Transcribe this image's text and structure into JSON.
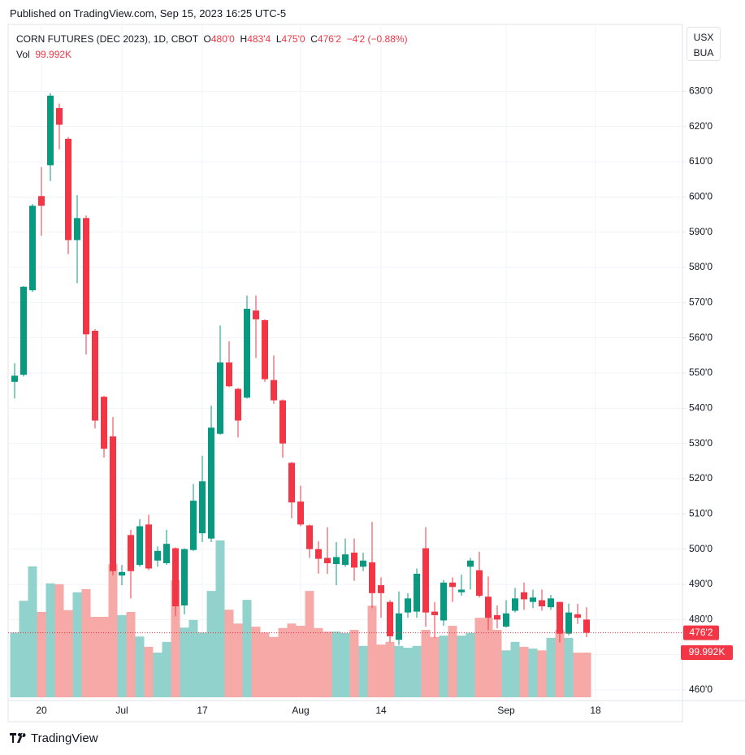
{
  "publisher": "Published on TradingView.com, Sep 15, 2023 16:25 UTC-5",
  "brand": "TradingView",
  "chart_data": {
    "type": "candlestick",
    "title": "CORN FUTURES (DEC 2023), 1D, CBOT",
    "header": {
      "ohlc": [
        {
          "key": "O",
          "text": "480'0"
        },
        {
          "key": "H",
          "text": "483'4"
        },
        {
          "key": "L",
          "text": "475'0"
        },
        {
          "key": "C",
          "text": "476'2"
        }
      ],
      "change": "−4'2 (−0.88%)",
      "volume_key": "Vol",
      "volume_text": "99.992K"
    },
    "currency": [
      "USX",
      "BUA"
    ],
    "categories": [
      null,
      null,
      null,
      "20",
      null,
      null,
      null,
      null,
      null,
      null,
      null,
      null,
      "Jul",
      null,
      null,
      null,
      null,
      null,
      null,
      null,
      null,
      "17",
      null,
      null,
      null,
      null,
      null,
      null,
      null,
      null,
      null,
      null,
      "Aug",
      null,
      null,
      null,
      null,
      null,
      null,
      null,
      null,
      "14",
      null,
      null,
      null,
      null,
      null,
      null,
      null,
      null,
      null,
      null,
      null,
      null,
      null,
      "Sep",
      null,
      null,
      null,
      null,
      null,
      null,
      null,
      null,
      null,
      "18"
    ],
    "open": [
      547.5,
      549.5,
      573.5,
      600.25,
      609,
      625.25,
      616.5,
      587.75,
      594,
      562,
      543.25,
      532,
      492.5,
      504,
      495.5,
      507,
      496.75,
      496,
      500.25,
      484,
      499.75,
      504.5,
      503,
      532.75,
      553,
      545.5,
      543,
      567.75,
      565,
      548,
      542.25,
      524.5,
      513.5,
      506.75,
      500,
      497.5,
      495.75,
      495.5,
      499,
      495,
      496.25,
      489.75,
      485,
      474.25,
      482,
      482.25,
      500.25,
      482.25,
      479.75,
      490.5,
      487.75,
      495,
      494,
      486.5,
      481.25,
      478,
      482.5,
      487.75,
      485,
      485.5,
      483.5,
      485,
      476,
      481.5,
      480,
      null
    ],
    "high": [
      552.75,
      574.75,
      598,
      608.5,
      629.5,
      626.5,
      617,
      600.5,
      594.75,
      562.5,
      543.5,
      537.5,
      495.5,
      505.5,
      508.5,
      509.75,
      500.75,
      505.5,
      500.5,
      500.25,
      518.5,
      526.5,
      540.75,
      563.5,
      559,
      545.75,
      572,
      572,
      565.25,
      555,
      542.5,
      524.75,
      518,
      507,
      502.25,
      506.25,
      502,
      503,
      503,
      499,
      507.75,
      492,
      485.5,
      488,
      487.5,
      494.5,
      506.25,
      485,
      491.25,
      492,
      492.75,
      497.5,
      499.25,
      492.25,
      484,
      485.5,
      489,
      490.5,
      488.5,
      488.5,
      487,
      485,
      484.5,
      484.5,
      483.5,
      null
    ],
    "low": [
      542.75,
      549,
      573,
      589,
      604.5,
      613.5,
      583.75,
      575.5,
      555.25,
      534.25,
      526,
      492.5,
      489.75,
      486,
      495,
      494,
      495,
      495.5,
      481,
      481.5,
      499.5,
      502,
      502,
      532.5,
      546,
      531.75,
      542.75,
      554.25,
      547.5,
      541.25,
      526,
      508.75,
      506.5,
      497.5,
      493,
      493,
      489.75,
      495,
      491,
      493.75,
      483.25,
      480.5,
      473.5,
      472.75,
      480.5,
      480.5,
      478,
      474.75,
      478.25,
      485,
      486.75,
      488.5,
      486.25,
      477,
      477.5,
      477.75,
      482,
      482.75,
      483.25,
      482.5,
      482.75,
      473.5,
      475.5,
      478.75,
      475,
      null
    ],
    "close": [
      549.25,
      574.5,
      597.5,
      597.5,
      628.75,
      620.5,
      587.75,
      594,
      561,
      536.5,
      528.5,
      493.75,
      493.5,
      493.75,
      506.5,
      494.5,
      499.5,
      501.5,
      483.75,
      500,
      513.75,
      519.25,
      534.5,
      553,
      546.25,
      536.5,
      568.25,
      565.25,
      548.25,
      542.25,
      530,
      513.25,
      507,
      500,
      497.25,
      496,
      497.75,
      498.5,
      494.75,
      496.75,
      487.5,
      487.5,
      475.25,
      481.75,
      486,
      493,
      482,
      481.25,
      490.5,
      489.25,
      488.5,
      496.75,
      486.75,
      480.5,
      480,
      481.75,
      486,
      485.75,
      486.25,
      483.75,
      486,
      476,
      482,
      480.5,
      476.25,
      null
    ],
    "volume": [
      145000,
      216000,
      293000,
      191000,
      255000,
      253000,
      195000,
      235000,
      242000,
      180000,
      180000,
      298000,
      184000,
      191000,
      136000,
      113000,
      100000,
      124000,
      262000,
      156000,
      173000,
      145000,
      238000,
      351000,
      196000,
      165000,
      218000,
      158000,
      145000,
      135000,
      155000,
      165000,
      160000,
      238000,
      155000,
      147000,
      147000,
      144000,
      151000,
      115000,
      205000,
      118000,
      124000,
      115000,
      111000,
      115000,
      151000,
      135000,
      138000,
      160000,
      138000,
      144000,
      178000,
      178000,
      151000,
      105000,
      124000,
      113000,
      109000,
      105000,
      133000,
      151000,
      133000,
      100000,
      99992,
      null
    ],
    "up_color": "#089981",
    "down_color": "#f23645",
    "volume_up_color": "#92d2cc",
    "volume_down_color": "#f7a9a7",
    "last_price": {
      "value": 476.25,
      "label": "476'2"
    },
    "last_volume": {
      "value": 99992,
      "label": "99.992K"
    },
    "ylim": [
      457,
      649
    ],
    "yticks": [
      {
        "value": 460,
        "label": "460'0"
      },
      {
        "value": 470,
        "label": "470'0"
      },
      {
        "value": 480,
        "label": "480'0"
      },
      {
        "value": 490,
        "label": "490'0"
      },
      {
        "value": 500,
        "label": "500'0"
      },
      {
        "value": 510,
        "label": "510'0"
      },
      {
        "value": 520,
        "label": "520'0"
      },
      {
        "value": 530,
        "label": "530'0"
      },
      {
        "value": 540,
        "label": "540'0"
      },
      {
        "value": 550,
        "label": "550'0"
      },
      {
        "value": 560,
        "label": "560'0"
      },
      {
        "value": 570,
        "label": "570'0"
      },
      {
        "value": 580,
        "label": "580'0"
      },
      {
        "value": 590,
        "label": "590'0"
      },
      {
        "value": 600,
        "label": "600'0"
      },
      {
        "value": 610,
        "label": "610'0"
      },
      {
        "value": 620,
        "label": "620'0"
      },
      {
        "value": 630,
        "label": "630'0"
      }
    ],
    "grid": true
  }
}
